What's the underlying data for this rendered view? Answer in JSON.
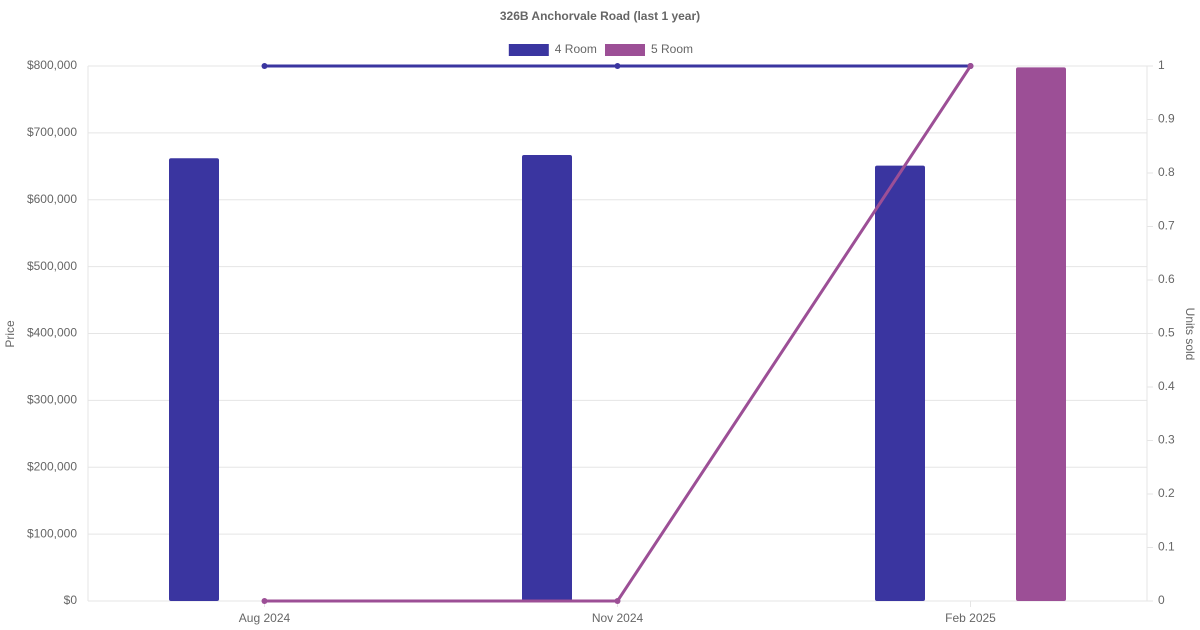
{
  "chart_data": {
    "type": "bar-line",
    "title": "326B Anchorvale Road (last 1 year)",
    "y_label": "Price",
    "y2_label": "Units sold",
    "categories": [
      "Aug 2024",
      "Nov 2024",
      "Feb 2025"
    ],
    "series": [
      {
        "name": "4 Room",
        "color": "#3a35a0",
        "values": [
          662000,
          667000,
          651000
        ],
        "units_sold": [
          1,
          1,
          1
        ]
      },
      {
        "name": "5 Room",
        "color": "#9c4f96",
        "values": [
          null,
          null,
          798000
        ],
        "units_sold": [
          0,
          0,
          1
        ]
      }
    ],
    "ylim": [
      0,
      800000
    ],
    "yticks": [
      {
        "value": 0,
        "label": "$0"
      },
      {
        "value": 100000,
        "label": "$100,000"
      },
      {
        "value": 200000,
        "label": "$200,000"
      },
      {
        "value": 300000,
        "label": "$300,000"
      },
      {
        "value": 400000,
        "label": "$400,000"
      },
      {
        "value": 500000,
        "label": "$500,000"
      },
      {
        "value": 600000,
        "label": "$600,000"
      },
      {
        "value": 700000,
        "label": "$700,000"
      },
      {
        "value": 800000,
        "label": "$800,000"
      }
    ],
    "y2lim": [
      0,
      1
    ],
    "y2ticks": [
      0,
      0.1,
      0.2,
      0.3,
      0.4,
      0.5,
      0.6,
      0.7,
      0.8,
      0.9,
      1
    ],
    "grid": true
  }
}
